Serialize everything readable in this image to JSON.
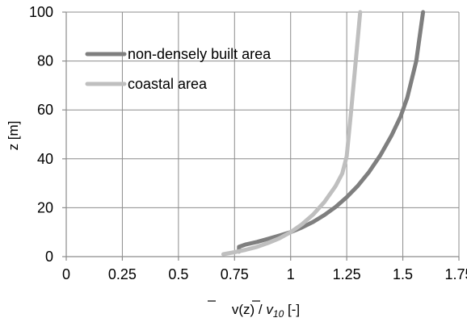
{
  "chart_data": {
    "type": "line",
    "xlabel": {
      "main": "v",
      "arg": "(z) / ",
      "sub_main": "v",
      "sub": "10",
      "unit": " [-]"
    },
    "ylabel": "z [m]",
    "xlim": [
      0,
      1.75
    ],
    "ylim": [
      0,
      100
    ],
    "x_ticks": [
      0,
      0.25,
      0.5,
      0.75,
      1,
      1.25,
      1.5,
      1.75
    ],
    "x_tick_labels": [
      "0",
      "0.25",
      "0.5",
      "0.75",
      "1",
      "1.25",
      "1.5",
      "1.75"
    ],
    "y_ticks": [
      0,
      20,
      40,
      60,
      80,
      100
    ],
    "y_tick_labels": [
      "0",
      "20",
      "40",
      "60",
      "80",
      "100"
    ],
    "grid": true,
    "legend_position": "top-left",
    "series": [
      {
        "name": "non-densely built area",
        "color": "#7f7f7f",
        "x": [
          0.77,
          0.77,
          0.8,
          0.85,
          0.9,
          0.95,
          1.0,
          1.05,
          1.1,
          1.15,
          1.2,
          1.25,
          1.3,
          1.35,
          1.4,
          1.45,
          1.49,
          1.52,
          1.56,
          1.59
        ],
        "y": [
          2,
          4,
          5,
          6,
          7.3,
          8.6,
          10,
          11.9,
          14.2,
          17.0,
          20.3,
          24.3,
          29.0,
          34.7,
          41.5,
          49.6,
          57.3,
          65,
          80,
          100
        ]
      },
      {
        "name": "coastal area",
        "color": "#bfbfbf",
        "x": [
          0.7,
          0.75,
          0.8,
          0.85,
          0.9,
          0.95,
          1.0,
          1.05,
          1.1,
          1.15,
          1.2,
          1.23,
          1.25,
          1.27,
          1.29,
          1.31
        ],
        "y": [
          1,
          1.8,
          2.8,
          4.0,
          5.6,
          7.5,
          10,
          13.2,
          17.2,
          22.3,
          28.8,
          34,
          41,
          60,
          80,
          100
        ]
      }
    ]
  }
}
